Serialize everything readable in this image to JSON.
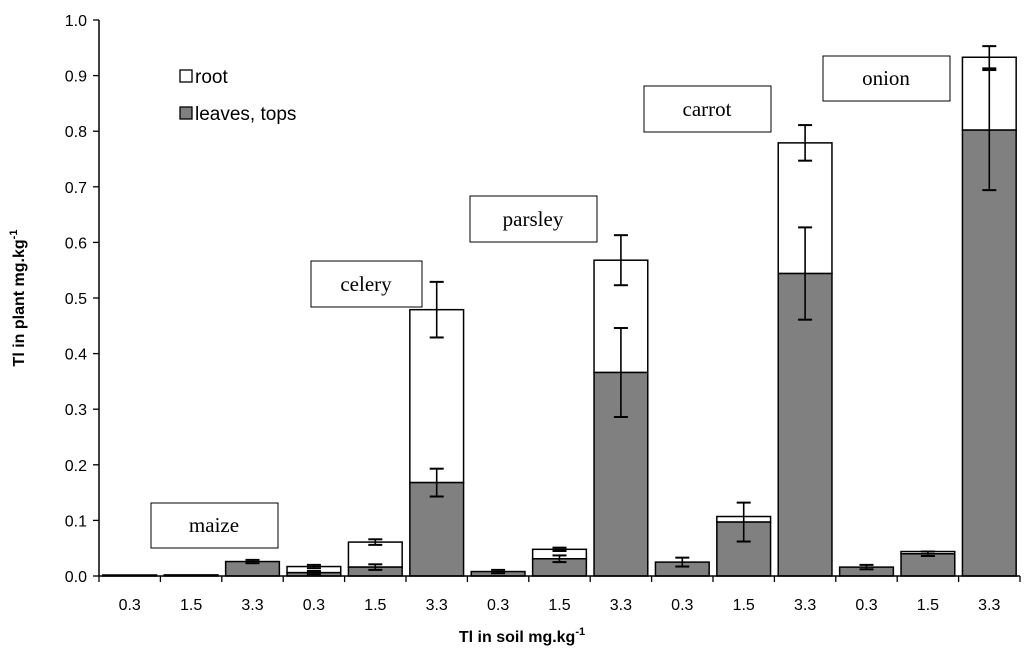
{
  "chart_data": {
    "type": "bar",
    "stacked": true,
    "title": "",
    "xlabel": "Tl in soil mg.kg",
    "xlabel_sup": "-1",
    "ylabel": "Tl in plant mg.kg",
    "ylabel_sup": "-1",
    "ylim": [
      0,
      1.0
    ],
    "yticks": [
      "0.0",
      "0.1",
      "0.2",
      "0.3",
      "0.4",
      "0.5",
      "0.6",
      "0.7",
      "0.8",
      "0.9",
      "1.0"
    ],
    "categories": [
      "0.3",
      "1.5",
      "3.3",
      "0.3",
      "1.5",
      "3.3",
      "0.3",
      "1.5",
      "3.3",
      "0.3",
      "1.5",
      "3.3",
      "0.3",
      "1.5",
      "3.3"
    ],
    "groups": [
      {
        "label": "maize"
      },
      {
        "label": "celery"
      },
      {
        "label": "parsley"
      },
      {
        "label": "carrot"
      },
      {
        "label": "onion"
      }
    ],
    "series": [
      {
        "name": "leaves, tops",
        "color": "#808080",
        "values": [
          0.001,
          0.002,
          0.026,
          0.006,
          0.016,
          0.168,
          0.008,
          0.031,
          0.366,
          0.025,
          0.097,
          0.544,
          0.016,
          0.04,
          0.802
        ],
        "errors": [
          0.0,
          0.0,
          0.003,
          0.003,
          0.005,
          0.025,
          0.003,
          0.006,
          0.08,
          0.008,
          0.035,
          0.083,
          0.004,
          0.004,
          0.108
        ]
      },
      {
        "name": "root",
        "color": "#ffffff",
        "values": [
          0.0,
          0.0,
          0.0,
          0.011,
          0.045,
          0.311,
          0.0,
          0.017,
          0.202,
          0.0,
          0.01,
          0.235,
          0.0,
          0.004,
          0.131
        ],
        "totals": [
          0.001,
          0.002,
          0.026,
          0.017,
          0.061,
          0.479,
          0.008,
          0.048,
          0.568,
          0.025,
          0.107,
          0.779,
          0.016,
          0.044,
          0.933
        ],
        "errors": [
          0.0,
          0.0,
          0.0,
          0.003,
          0.005,
          0.05,
          0.0,
          0.003,
          0.045,
          0.0,
          0.0,
          0.032,
          0.0,
          0.0,
          0.02
        ]
      }
    ],
    "legend": [
      "root",
      "leaves, tops"
    ],
    "grid": false
  }
}
